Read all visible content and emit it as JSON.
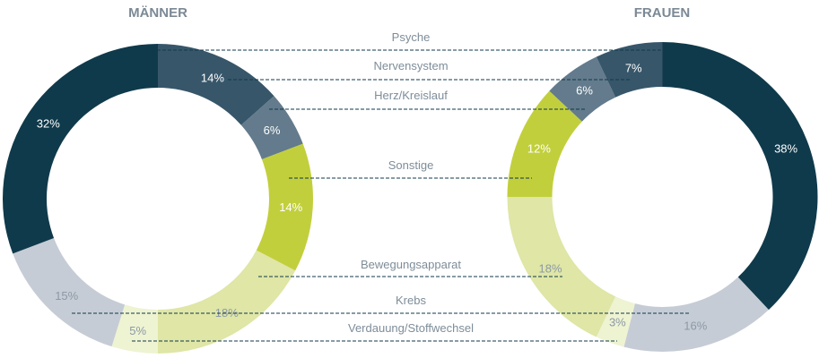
{
  "chart_data": [
    {
      "type": "pie",
      "variant": "donut",
      "title": "MÄNNER",
      "categories": [
        "Nervensystem",
        "Herz/Kreislauf",
        "Sonstige",
        "Bewegungsapparat",
        "Verdauung/Stoffwechsel",
        "Krebs",
        "Psyche"
      ],
      "values": [
        14,
        6,
        14,
        18,
        5,
        15,
        32
      ],
      "labels": [
        "14%",
        "6%",
        "14%",
        "18%",
        "5%",
        "15%",
        "32%"
      ]
    },
    {
      "type": "pie",
      "variant": "donut",
      "title": "FRAUEN",
      "categories": [
        "Psyche",
        "Krebs",
        "Verdauung/Stoffwechsel",
        "Bewegungsapparat",
        "Sonstige",
        "Herz/Kreislauf",
        "Nervensystem"
      ],
      "values": [
        38,
        16,
        3,
        18,
        12,
        6,
        7
      ],
      "labels": [
        "38%",
        "16%",
        "3%",
        "18%",
        "12%",
        "6%",
        "7%"
      ]
    }
  ],
  "legend": [
    "Psyche",
    "Nervensystem",
    "Herz/Kreislauf",
    "Sonstige",
    "Bewegungsapparat",
    "Krebs",
    "Verdauung/Stoffwechsel"
  ],
  "colors": {
    "Psyche": "#0f3a4b",
    "Nervensystem": "#37566a",
    "Herz/Kreislauf": "#637b8c",
    "Sonstige": "#c2cf3c",
    "Bewegungsapparat": "#dfe6a6",
    "Verdauung/Stoffwechsel": "#eef3d2",
    "Krebs": "#c6ccd5"
  },
  "label_text_colors": {
    "dark": "#ffffff",
    "light": "#8c99a6"
  },
  "leader_line_color": "#0f3a4b"
}
